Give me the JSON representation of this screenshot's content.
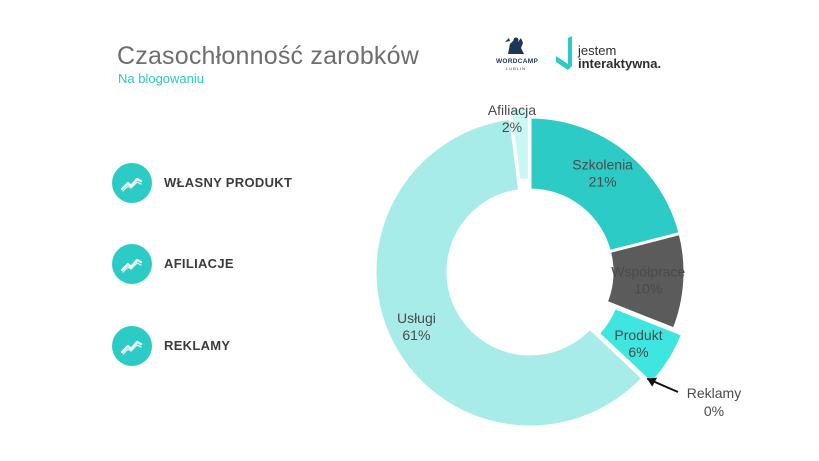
{
  "header": {
    "title": "Czasochłonność zarobków",
    "subtitle": "Na blogowaniu"
  },
  "logos": {
    "wordcamp_text": "WORDCAMP",
    "wordcamp_sub": "LUBLIN",
    "jestem_line1": "jestem",
    "jestem_line2": "interaktywna."
  },
  "legend": {
    "icon": "trending-up-icon",
    "items": [
      {
        "label": "WŁASNY PRODUKT"
      },
      {
        "label": "AFILIACJE"
      },
      {
        "label": "REKLAMY"
      }
    ]
  },
  "colors": {
    "accent": "#2ccbc5",
    "title": "#6e6e6e",
    "subtitle": "#2cc9c4"
  },
  "chart_data": {
    "type": "pie",
    "donut": true,
    "title": "Czasochłonność zarobków",
    "subtitle": "Na blogowaniu",
    "categories": [
      "Szkolenia",
      "Współprace",
      "Produkt",
      "Reklamy",
      "Usługi",
      "Afiliacja"
    ],
    "values": [
      21,
      10,
      6,
      0,
      61,
      2
    ],
    "labels": [
      "21%",
      "10%",
      "6%",
      "0%",
      "61%",
      "2%"
    ],
    "colors": [
      "#2ccbc5",
      "#5b5b5b",
      "#3fe6e0",
      "#2ccbc5",
      "#a8ecea",
      "#c8f7f4"
    ],
    "exploded": [
      "Produkt",
      "Afiliacja"
    ],
    "annotation": {
      "category": "Reklamy",
      "style": "arrow"
    }
  }
}
